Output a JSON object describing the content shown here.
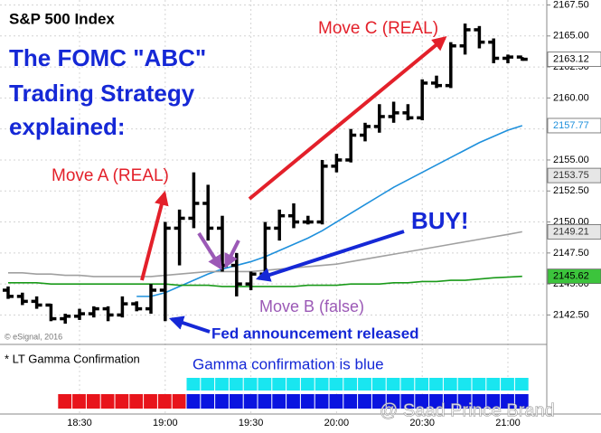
{
  "chart_data": {
    "type": "ohlc",
    "title": "S&P 500 Index",
    "headline": [
      "The FOMC \"ABC\"",
      "Trading Strategy",
      "explained:"
    ],
    "annotations": {
      "move_a": "Move A (REAL)",
      "move_b": "Move B (false)",
      "move_c": "Move C (REAL)",
      "buy": "BUY!",
      "fed": "Fed announcement released"
    },
    "credit": "© eSignal, 2016",
    "watermark": "@ Saad Prince Brand",
    "categories": [
      null,
      null,
      null,
      null,
      null,
      "18:30",
      null,
      null,
      null,
      null,
      null,
      "19:00",
      null,
      null,
      null,
      null,
      null,
      "19:30",
      null,
      null,
      null,
      null,
      null,
      "20:00",
      null,
      null,
      null,
      null,
      null,
      "20:30",
      null,
      null,
      null,
      null,
      null,
      "21:00",
      null
    ],
    "ohlc": {
      "color": "#000000",
      "open": [
        2144.5,
        2144.0,
        2143.6,
        2143.3,
        2142.2,
        2142.4,
        2142.6,
        2143.0,
        2142.5,
        2143.4,
        2143.0,
        2144.5,
        2149.5,
        2150.3,
        2151.5,
        2149.5,
        2146.5,
        2145.0,
        2145.8,
        2149.5,
        2150.5,
        2150.0,
        2150.0,
        2154.5,
        2155.0,
        2157.0,
        2157.7,
        2158.5,
        2158.8,
        2158.4,
        2161.2,
        2161.0,
        2164.2,
        2165.5,
        2164.5,
        2163.2,
        2163.3
      ],
      "high": [
        2144.8,
        2144.3,
        2144.0,
        2143.4,
        2142.6,
        2143.0,
        2143.2,
        2143.2,
        2144.0,
        2143.6,
        2145.0,
        2150.0,
        2151.0,
        2154.0,
        2153.0,
        2150.5,
        2147.5,
        2146.0,
        2150.0,
        2151.0,
        2151.5,
        2150.5,
        2155.0,
        2155.5,
        2157.5,
        2158.0,
        2159.5,
        2159.7,
        2159.5,
        2161.5,
        2161.8,
        2164.5,
        2166.0,
        2165.8,
        2164.8,
        2163.5,
        2163.3
      ],
      "low": [
        2143.8,
        2143.3,
        2143.0,
        2142.0,
        2141.8,
        2142.1,
        2142.3,
        2142.0,
        2142.3,
        2142.8,
        2142.6,
        2142.0,
        2146.5,
        2149.5,
        2148.5,
        2146.0,
        2144.0,
        2144.5,
        2145.5,
        2148.5,
        2149.5,
        2149.8,
        2149.8,
        2154.0,
        2154.8,
        2156.5,
        2157.2,
        2158.0,
        2158.2,
        2158.2,
        2160.8,
        2160.8,
        2163.5,
        2164.0,
        2162.8,
        2162.8,
        2163.0
      ],
      "close": [
        2144.0,
        2143.6,
        2143.3,
        2142.2,
        2142.4,
        2142.6,
        2143.0,
        2142.5,
        2143.4,
        2143.0,
        2144.5,
        2149.5,
        2150.3,
        2151.5,
        2149.5,
        2146.5,
        2145.0,
        2145.8,
        2149.5,
        2150.5,
        2150.0,
        2150.0,
        2154.5,
        2155.0,
        2157.0,
        2157.7,
        2158.5,
        2158.8,
        2158.4,
        2161.2,
        2161.0,
        2164.2,
        2165.5,
        2164.5,
        2163.2,
        2163.3,
        2163.12
      ]
    },
    "lines": [
      {
        "color": "#1e90dc",
        "values": [
          null,
          null,
          null,
          null,
          null,
          null,
          null,
          null,
          null,
          2144.0,
          2144.0,
          2144.3,
          2144.8,
          2145.3,
          2145.8,
          2146.2,
          2146.5,
          2146.8,
          2147.2,
          2147.7,
          2148.2,
          2148.7,
          2149.3,
          2150.0,
          2150.7,
          2151.4,
          2152.1,
          2152.8,
          2153.4,
          2154.0,
          2154.6,
          2155.2,
          2155.8,
          2156.4,
          2156.9,
          2157.4,
          2157.77
        ]
      },
      {
        "color": "#a0a0a0",
        "values": [
          2145.9,
          2145.9,
          2145.8,
          2145.8,
          2145.7,
          2145.7,
          2145.6,
          2145.6,
          2145.6,
          2145.6,
          2145.6,
          2145.7,
          2145.8,
          2145.9,
          2146.0,
          2146.0,
          2146.0,
          2146.0,
          2146.1,
          2146.2,
          2146.3,
          2146.4,
          2146.5,
          2146.6,
          2146.8,
          2147.0,
          2147.2,
          2147.4,
          2147.6,
          2147.8,
          2148.0,
          2148.2,
          2148.4,
          2148.6,
          2148.8,
          2149.0,
          2149.21
        ]
      },
      {
        "color": "#1a9a1a",
        "values": [
          2145.1,
          2145.1,
          2145.1,
          2145.0,
          2145.0,
          2145.0,
          2145.0,
          2145.0,
          2145.0,
          2145.0,
          2145.0,
          2145.0,
          2144.9,
          2144.9,
          2144.9,
          2144.8,
          2144.8,
          2144.8,
          2144.8,
          2144.8,
          2144.8,
          2144.9,
          2144.9,
          2144.9,
          2145.0,
          2145.0,
          2145.0,
          2145.1,
          2145.1,
          2145.2,
          2145.2,
          2145.3,
          2145.3,
          2145.4,
          2145.5,
          2145.55,
          2145.62
        ]
      }
    ],
    "price_markers": [
      {
        "value": 2163.12,
        "color": "#ffffff",
        "text_color": "#000000"
      },
      {
        "value": 2157.77,
        "color": "#ffffff",
        "text_color": "#1e90dc"
      },
      {
        "value": 2153.75,
        "color": "#e6e6e6",
        "text_color": "#333333"
      },
      {
        "value": 2149.21,
        "color": "#e6e6e6",
        "text_color": "#333333"
      },
      {
        "value": 2145.62,
        "color": "#3cc43c",
        "text_color": "#000000"
      }
    ],
    "ylim": [
      2140.2,
      2167.9
    ],
    "yticks": [
      {
        "value": 2142.5,
        "label": "2142.50"
      },
      {
        "value": 2145,
        "label": "2145.00"
      },
      {
        "value": 2147.5,
        "label": "2147.50"
      },
      {
        "value": 2150,
        "label": "2150.00"
      },
      {
        "value": 2152.5,
        "label": "2152.50"
      },
      {
        "value": 2155,
        "label": "2155.00"
      },
      {
        "value": 2157.5,
        "label": "2157.50"
      },
      {
        "value": 2160,
        "label": "2160.00"
      },
      {
        "value": 2162.5,
        "label": "2162.50"
      },
      {
        "value": 2165,
        "label": "2165.00"
      },
      {
        "value": 2167.5,
        "label": "2167.50"
      }
    ],
    "grid": true,
    "gamma": {
      "title": "* LT Gamma Confirmation",
      "note": "Gamma confirmation is blue",
      "upper": [
        null,
        null,
        null,
        null,
        null,
        null,
        null,
        null,
        null,
        null,
        null,
        null,
        null,
        "#19e6f0",
        "#19e6f0",
        "#19e6f0",
        "#19e6f0",
        "#19e6f0",
        "#19e6f0",
        "#19e6f0",
        "#19e6f0",
        "#19e6f0",
        "#19e6f0",
        "#19e6f0",
        "#19e6f0",
        "#19e6f0",
        "#19e6f0",
        "#19e6f0",
        "#19e6f0",
        "#19e6f0",
        "#19e6f0",
        "#19e6f0",
        "#19e6f0",
        "#19e6f0",
        "#19e6f0",
        "#19e6f0",
        "#19e6f0"
      ],
      "lower": [
        null,
        null,
        null,
        null,
        "#e8141b",
        "#e8141b",
        "#e8141b",
        "#e8141b",
        "#e8141b",
        "#e8141b",
        "#e8141b",
        "#e8141b",
        "#e8141b",
        "#0a14e0",
        "#0a14e0",
        "#0a14e0",
        "#0a14e0",
        "#0a14e0",
        "#0a14e0",
        "#0a14e0",
        "#0a14e0",
        "#0a14e0",
        "#0a14e0",
        "#0a14e0",
        "#0a14e0",
        "#0a14e0",
        "#0a14e0",
        "#0a14e0",
        "#0a14e0",
        "#0a14e0",
        "#0a14e0",
        "#0a14e0",
        "#0a14e0",
        "#0a14e0",
        "#0a14e0",
        "#0a14e0",
        "#0a14e0"
      ]
    }
  }
}
